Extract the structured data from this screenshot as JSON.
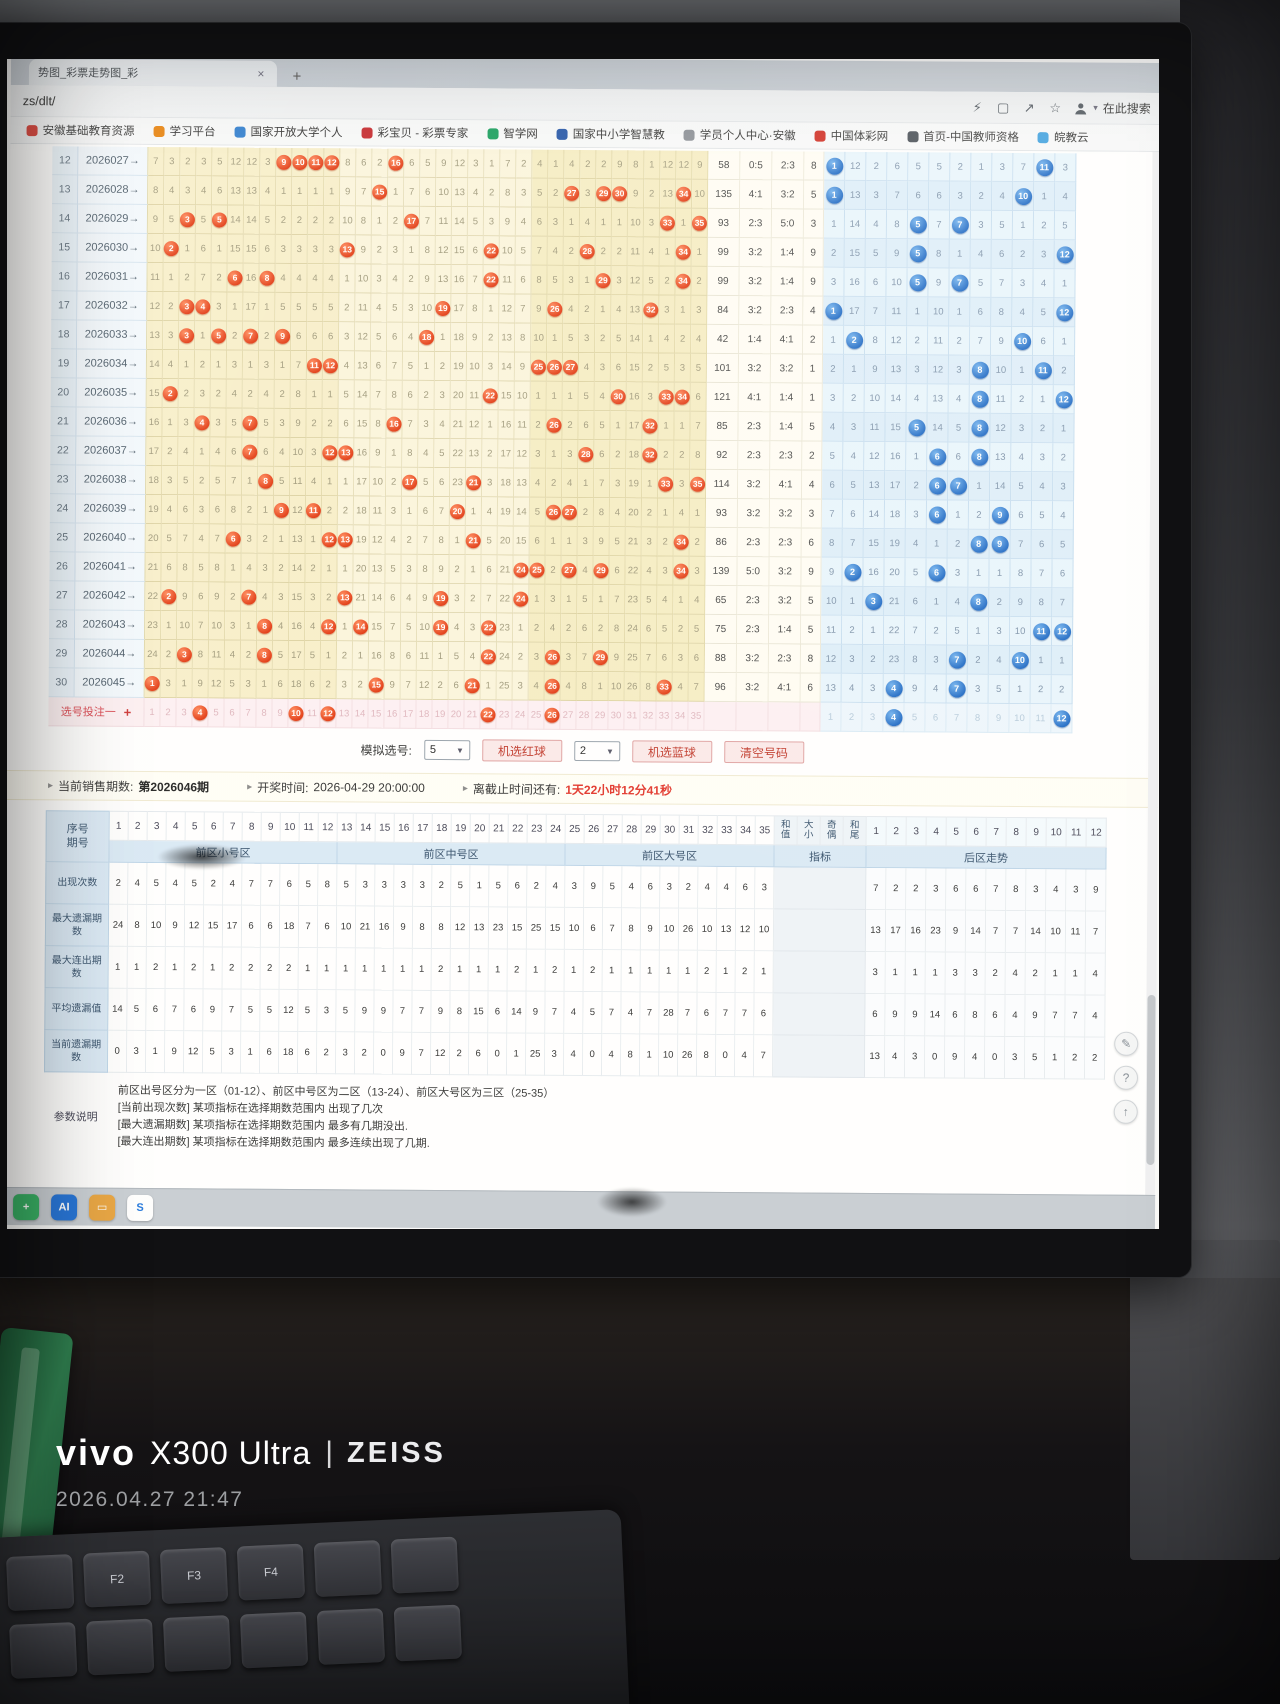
{
  "browser": {
    "tab_title": "势图_彩票走势图_彩",
    "tab_close": "×",
    "new_tab": "+",
    "url": "zs/dlt/",
    "toolbar_icons": [
      {
        "name": "flash-icon",
        "glyph": "⚡"
      },
      {
        "name": "panels-icon",
        "glyph": "▢"
      },
      {
        "name": "share-icon",
        "glyph": "↗"
      },
      {
        "name": "favorite-star-icon",
        "glyph": "☆"
      }
    ],
    "search_label": "在此搜索",
    "bookmarks": [
      {
        "label": "安徽基础教育资源",
        "color": "#d9342b"
      },
      {
        "label": "学习平台",
        "color": "#e8820c"
      },
      {
        "label": "国家开放大学个人",
        "color": "#2f7fd0"
      },
      {
        "label": "彩宝贝 - 彩票专家",
        "color": "#c6282d"
      },
      {
        "label": "智学网",
        "color": "#18a05e"
      },
      {
        "label": "国家中小学智慧教",
        "color": "#2456a8"
      },
      {
        "label": "学员个人中心·安徽",
        "color": "#8a8f96"
      },
      {
        "label": "中国体彩网",
        "color": "#d02a20"
      },
      {
        "label": "首页-中国教师资格",
        "color": "#444a52"
      },
      {
        "label": "皖教云",
        "color": "#3da0e0"
      }
    ]
  },
  "trend": {
    "rows": [
      {
        "idx": "12",
        "period": "2026027→",
        "front": "7,3,2,3,5,12,12,3,R9,R10,R11,R12,8,6,2,R16,6,5,9,12,3,1,7,2,4,1,4,2,2,9,8,1,12,12,9",
        "sum": "58",
        "size": "0:5",
        "odd": "2:3",
        "tail": "8",
        "back": "B1,12,2,6,5,5,2,1,3,7,B11,3"
      },
      {
        "idx": "13",
        "period": "2026028→",
        "front": "8,4,3,4,6,13,13,4,1,1,1,1,9,7,R15,1,7,6,10,13,4,2,8,3,5,2,R27,3,R29,R30,9,2,13,R34,10",
        "sum": "135",
        "size": "4:1",
        "odd": "3:2",
        "tail": "5",
        "back": "B1,13,3,7,6,6,3,2,4,B10,1,4"
      },
      {
        "idx": "14",
        "period": "2026029→",
        "front": "9,5,R3,5,R5,14,14,5,2,2,2,2,10,8,1,2,R17,7,11,14,5,3,9,4,6,3,1,4,1,1,10,3,R33,1,R35",
        "sum": "93",
        "size": "2:3",
        "odd": "5:0",
        "tail": "3",
        "back": "1,14,4,8,B5,7,B7,3,5,1,2,5"
      },
      {
        "idx": "15",
        "period": "2026030→",
        "front": "10,R2,1,6,1,15,15,6,3,3,3,3,R13,9,2,3,1,8,12,15,6,R22,10,5,7,4,2,R28,2,2,11,4,1,R34,1",
        "sum": "99",
        "size": "3:2",
        "odd": "1:4",
        "tail": "9",
        "back": "2,15,5,9,B5,8,1,4,6,2,3,B12"
      },
      {
        "idx": "16",
        "period": "2026031→",
        "front": "11,1,2,7,2,R6,16,R8,4,4,4,4,1,10,3,4,2,9,13,16,7,R22,11,6,8,5,3,1,R29,3,12,5,2,R34,2",
        "sum": "99",
        "size": "3:2",
        "odd": "1:4",
        "tail": "9",
        "back": "3,16,6,10,B5,9,B7,5,7,3,4,1"
      },
      {
        "idx": "17",
        "period": "2026032→",
        "front": "12,2,R3,R4,3,1,17,1,5,5,5,5,2,11,4,5,3,10,R19,17,8,1,12,7,9,R26,4,2,1,4,13,R32,3,1,3",
        "sum": "84",
        "size": "3:2",
        "odd": "2:3",
        "tail": "4",
        "back": "B1,17,7,11,1,10,1,6,8,4,5,B12"
      },
      {
        "idx": "18",
        "period": "2026033→",
        "front": "13,3,R3,1,R5,2,R7,2,R9,6,6,6,3,12,5,6,4,R18,1,18,9,2,13,8,10,1,5,3,2,5,14,1,4,2,4",
        "sum": "42",
        "size": "1:4",
        "odd": "4:1",
        "tail": "2",
        "back": "1,B2,8,12,2,11,2,7,9,B10,6,1"
      },
      {
        "idx": "19",
        "period": "2026034→",
        "front": "14,4,1,2,1,3,1,3,1,7,R11,R12,4,13,6,7,5,1,2,19,10,3,14,9,R25,R26,R27,4,3,6,15,2,5,3,5",
        "sum": "101",
        "size": "3:2",
        "odd": "3:2",
        "tail": "1",
        "back": "2,1,9,13,3,12,3,B8,10,1,B11,2"
      },
      {
        "idx": "20",
        "period": "2026035→",
        "front": "15,R2,2,3,2,4,2,4,2,8,1,1,5,14,7,8,6,2,3,20,11,R22,15,10,1,1,1,5,4,R30,16,3,R33,R34,6",
        "sum": "121",
        "size": "4:1",
        "odd": "1:4",
        "tail": "1",
        "back": "3,2,10,14,4,13,4,B8,11,2,1,B12"
      },
      {
        "idx": "21",
        "period": "2026036→",
        "front": "16,1,3,R4,3,5,R7,5,3,9,2,2,6,15,8,R16,7,3,4,21,12,1,16,11,2,R26,2,6,5,1,17,R32,1,1,7",
        "sum": "85",
        "size": "2:3",
        "odd": "1:4",
        "tail": "5",
        "back": "4,3,11,15,B5,14,5,B8,12,3,2,1"
      },
      {
        "idx": "22",
        "period": "2026037→",
        "front": "17,2,4,1,4,6,R7,6,4,10,3,R12,R13,16,9,1,8,4,5,22,13,2,17,12,3,1,3,R28,6,2,18,R32,2,2,8",
        "sum": "92",
        "size": "2:3",
        "odd": "2:3",
        "tail": "2",
        "back": "5,4,12,16,1,B6,6,B8,13,4,3,2"
      },
      {
        "idx": "23",
        "period": "2026038→",
        "front": "18,3,5,2,5,7,1,R8,5,11,4,1,1,17,10,2,R17,5,6,23,R21,3,18,13,4,2,4,1,7,3,19,1,R33,3,R35",
        "sum": "114",
        "size": "3:2",
        "odd": "4:1",
        "tail": "4",
        "back": "6,5,13,17,2,B6,B7,1,14,5,4,3"
      },
      {
        "idx": "24",
        "period": "2026039→",
        "front": "19,4,6,3,6,8,2,1,R9,12,R11,2,2,18,11,3,1,6,7,R20,1,4,19,14,5,R26,R27,2,8,4,20,2,1,4,1",
        "sum": "93",
        "size": "3:2",
        "odd": "3:2",
        "tail": "3",
        "back": "7,6,14,18,3,B6,1,2,B9,6,5,4"
      },
      {
        "idx": "25",
        "period": "2026040→",
        "front": "20,5,7,4,7,R6,3,2,1,13,1,R12,R13,19,12,4,2,7,8,1,R21,5,20,15,6,1,1,3,9,5,21,3,2,R34,2",
        "sum": "86",
        "size": "2:3",
        "odd": "2:3",
        "tail": "6",
        "back": "8,7,15,19,4,1,2,B8,B9,7,6,5"
      },
      {
        "idx": "26",
        "period": "2026041→",
        "front": "21,6,8,5,8,1,4,3,2,14,2,1,1,20,13,5,3,8,9,2,1,6,21,R24,R25,2,R27,4,R29,6,22,4,3,R34,3",
        "sum": "139",
        "size": "5:0",
        "odd": "3:2",
        "tail": "9",
        "back": "9,B2,16,20,5,B6,3,1,1,8,7,6"
      },
      {
        "idx": "27",
        "period": "2026042→",
        "front": "22,R2,9,6,9,2,R7,4,3,15,3,2,R13,21,14,6,4,9,R19,3,2,7,22,R24,1,3,1,5,1,7,23,5,4,1,4",
        "sum": "65",
        "size": "2:3",
        "odd": "3:2",
        "tail": "5",
        "back": "10,1,B3,21,6,1,4,B8,2,9,8,7"
      },
      {
        "idx": "28",
        "period": "2026043→",
        "front": "23,1,10,7,10,3,1,R8,4,16,4,R12,1,R14,15,7,5,10,R19,4,3,R22,23,1,2,4,2,6,2,8,24,6,5,2,5",
        "sum": "75",
        "size": "2:3",
        "odd": "1:4",
        "tail": "5",
        "back": "11,2,1,22,7,2,5,1,3,10,B11,B12"
      },
      {
        "idx": "29",
        "period": "2026044→",
        "front": "24,2,R3,8,11,4,2,R8,5,17,5,1,2,1,16,8,6,11,1,5,4,R22,24,2,3,R26,3,7,R29,9,25,7,6,3,6",
        "sum": "88",
        "size": "3:2",
        "odd": "2:3",
        "tail": "8",
        "back": "12,3,2,23,8,3,B7,2,4,B10,1,1"
      },
      {
        "idx": "30",
        "period": "2026045→",
        "front": "R1,3,1,9,12,5,3,1,6,18,6,2,3,2,R15,9,7,12,2,6,R21,1,25,3,4,R26,4,8,1,10,26,8,R33,4,7",
        "sum": "96",
        "size": "3:2",
        "odd": "4:1",
        "tail": "6",
        "back": "13,4,3,B4,9,4,B7,3,5,1,2,2"
      }
    ],
    "select_row": {
      "label": "选号投注一",
      "plus": "+",
      "front": "1,2,3,R4,5,6,7,8,9,R10,11,R12,13,14,15,16,17,18,19,20,21,R22,23,24,25,R26,27,28,29,30,31,32,33,34,35",
      "back": "1,2,3,B4,5,6,7,8,9,10,11,B12"
    }
  },
  "controls": {
    "label": "模拟选号:",
    "red_count": "5",
    "pick_red": "机选红球",
    "blue_count": "2",
    "pick_blue": "机选蓝球",
    "clear": "清空号码"
  },
  "info": {
    "sale_label": "当前销售期数:",
    "sale_value": "第2026046期",
    "draw_label": "开奖时间:",
    "draw_value": "2026-04-29 20:00:00",
    "deadline_label": "离截止时间还有:",
    "deadline_value": "1天22小时12分41秒"
  },
  "stats": {
    "corner": [
      "序号",
      "期号"
    ],
    "front_range": [
      1,
      35
    ],
    "back_range": [
      1,
      12
    ],
    "indicators": [
      "和值",
      "大小",
      "奇偶",
      "和尾"
    ],
    "zones": [
      "前区小号区",
      "前区中号区",
      "前区大号区",
      "指标",
      "后区走势"
    ],
    "rows": [
      {
        "label": "出现次数",
        "front": "2,4,5,4,5,2,4,7,7,6,5,8,5,3,3,3,3,2,5,1,5,6,2,4,3,9,5,4,6,3,2,4,4,6,3",
        "back": "7,2,2,3,6,6,7,8,3,4,3,9"
      },
      {
        "label": "最大遗漏期数",
        "front": "24,8,10,9,12,15,17,6,6,18,7,6,10,21,16,9,8,8,12,13,23,15,25,15,10,6,7,8,9,10,26,10,13,12,10",
        "back": "13,17,16,23,9,14,7,7,14,10,11,7"
      },
      {
        "label": "最大连出期数",
        "front": "1,1,2,1,2,1,2,2,2,2,1,1,1,1,1,1,1,2,1,1,1,2,1,2,1,2,1,1,1,1,1,2,1,2,1",
        "back": "3,1,1,1,3,3,2,4,2,1,1,4"
      },
      {
        "label": "平均遗漏值",
        "front": "14,5,6,7,6,9,7,5,5,12,5,3,5,9,9,7,7,9,8,15,6,14,9,7,4,5,7,4,7,28,7,6,7,7,6",
        "back": "6,9,9,14,6,8,6,4,9,7,7,4"
      },
      {
        "label": "当前遗漏期数",
        "front": "0,3,1,9,12,5,3,1,6,18,6,2,3,2,0,9,7,12,2,6,0,1,25,3,4,0,4,8,1,10,26,8,0,4,7",
        "back": "13,4,3,0,9,4,0,3,5,1,2,2"
      }
    ]
  },
  "notes": {
    "label": "参数说明",
    "lines": [
      "前区出号区分为一区（01-12）、前区中号区为二区（13-24）、前区大号区为三区（25-35）",
      "[当前出现次数] 某项指标在选择期数范围内 出现了几次",
      "[最大遗漏期数] 某项指标在选择期数范围内 最多有几期没出.",
      "[最大连出期数] 某项指标在选择期数范围内 最多连续出现了几期."
    ]
  },
  "taskbar": {
    "icons": [
      {
        "name": "messenger-icon",
        "bg": "#2fae5f",
        "glyph": "+",
        "fg": "#ffffff"
      },
      {
        "name": "browser-ai-icon",
        "bg": "#1e6fd6",
        "glyph": "AI",
        "fg": "#ffffff"
      },
      {
        "name": "folder-icon",
        "bg": "#e8a33d",
        "glyph": "▭",
        "fg": "#ffffff"
      },
      {
        "name": "sogou-icon",
        "bg": "#ffffff",
        "glyph": "S",
        "fg": "#2277dd"
      }
    ]
  },
  "floaters": [
    {
      "name": "edit-note-button",
      "glyph": "✎"
    },
    {
      "name": "help-button",
      "glyph": "?"
    },
    {
      "name": "back-to-top-button",
      "glyph": "↑"
    }
  ],
  "keyboard": {
    "rows": [
      [
        "",
        "F2",
        "F3",
        "F4",
        "",
        ""
      ],
      [
        "",
        "",
        "",
        "",
        "",
        ""
      ]
    ]
  },
  "watermark": {
    "brand": "vivo",
    "model": "X300 Ultra",
    "sep": "|",
    "lens": "ZEISS",
    "datetime": "2026.04.27 21:47"
  }
}
